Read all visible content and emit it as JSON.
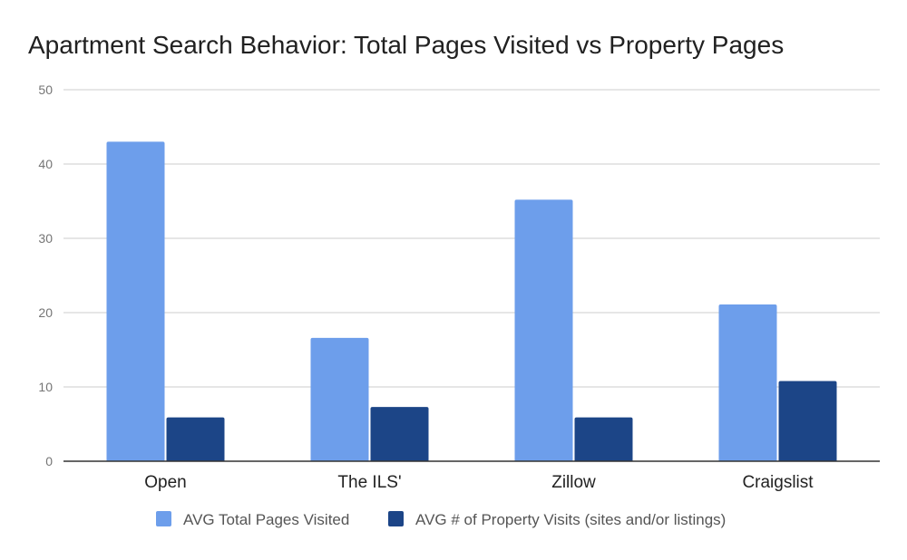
{
  "chart_data": {
    "type": "bar",
    "title": "Apartment Search Behavior: Total Pages Visited vs Property Pages",
    "xlabel": "",
    "ylabel": "",
    "categories": [
      "Open",
      "The ILS'",
      "Zillow",
      "Craigslist"
    ],
    "series": [
      {
        "name": "AVG Total Pages Visited",
        "values": [
          43,
          16.6,
          35.2,
          21.1
        ],
        "color": "#6d9eeb"
      },
      {
        "name": "AVG # of Property Visits (sites and/or listings)",
        "values": [
          5.9,
          7.3,
          5.9,
          10.8
        ],
        "color": "#1c4587"
      }
    ],
    "ylim": [
      0,
      50
    ],
    "yticks": [
      "0",
      "10",
      "20",
      "30",
      "40",
      "50"
    ],
    "grid": true,
    "legend_position": "bottom"
  }
}
